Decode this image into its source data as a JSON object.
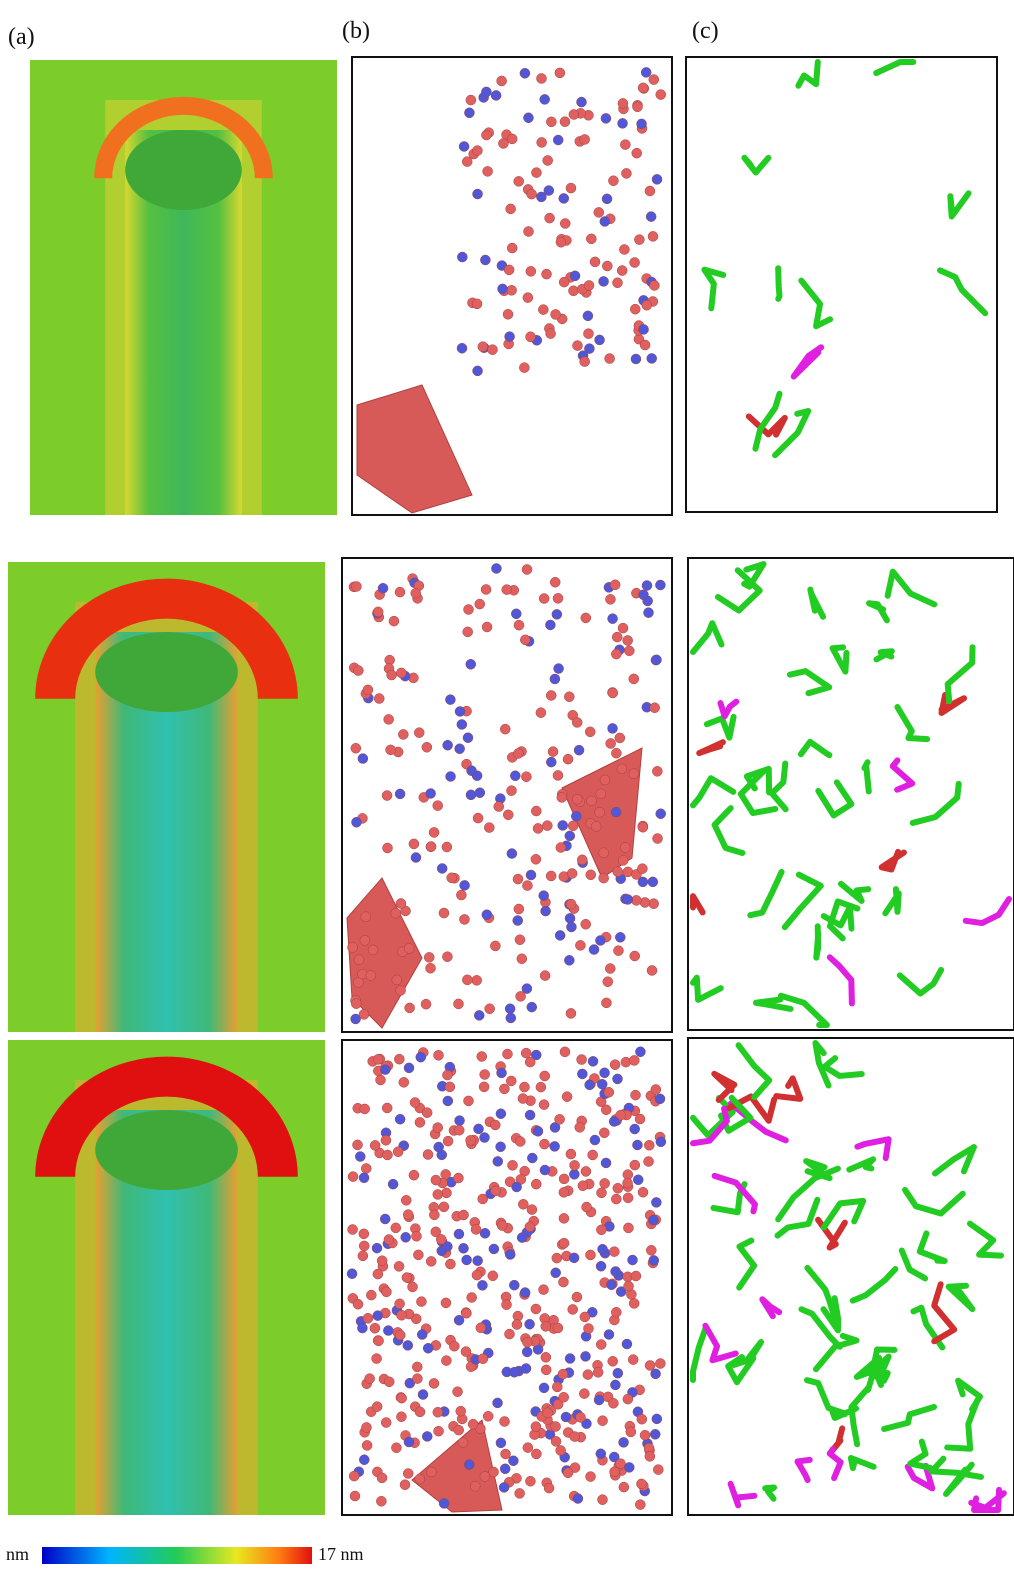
{
  "panel_labels": [
    "(a)",
    "(b)",
    "(c)"
  ],
  "colorbar": {
    "min_label": "nm",
    "max_label": "17 nm"
  }
}
